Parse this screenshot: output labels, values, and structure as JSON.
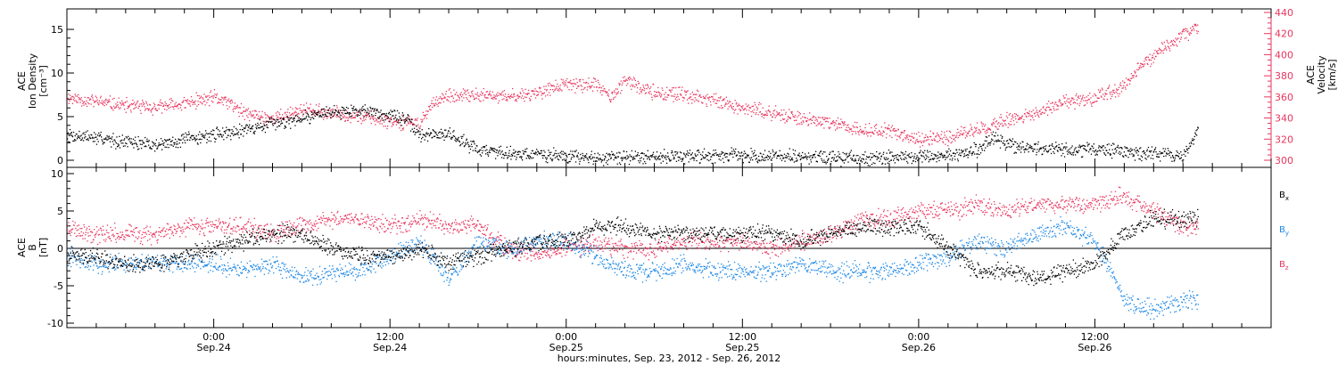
{
  "colors": {
    "black": "#000000",
    "red": "#e8365e",
    "blue": "#1e88e5",
    "frame": "#000000"
  },
  "xaxis": {
    "label": "hours:minutes, Sep. 23, 2012 - Sep. 26, 2012",
    "range_hours": [
      -10,
      72
    ],
    "ticks": [
      {
        "h": 0,
        "time": "0:00",
        "date": "Sep.24"
      },
      {
        "h": 12,
        "time": "12:00",
        "date": "Sep.24"
      },
      {
        "h": 24,
        "time": "0:00",
        "date": "Sep.25"
      },
      {
        "h": 36,
        "time": "12:00",
        "date": "Sep.25"
      },
      {
        "h": 48,
        "time": "0:00",
        "date": "Sep.26"
      },
      {
        "h": 60,
        "time": "12:00",
        "date": "Sep.26"
      }
    ]
  },
  "panel_top": {
    "left_label_lines": [
      "ACE",
      "Ion Density",
      "[cm⁻³]"
    ],
    "right_label_lines": [
      "ACE",
      "Velocity",
      "[km/s]"
    ],
    "left_ticks": [
      "0",
      "5",
      "10",
      "15"
    ],
    "right_ticks": [
      "300",
      "320",
      "340",
      "360",
      "380",
      "400",
      "420",
      "440"
    ]
  },
  "panel_bottom": {
    "left_label_lines": [
      "ACE",
      "B",
      "[nT]"
    ],
    "left_ticks": [
      "-10",
      "-5",
      "0",
      "5",
      "10"
    ],
    "legend": [
      {
        "label": "B",
        "sub": "x",
        "color_key": "black"
      },
      {
        "label": "B",
        "sub": "y",
        "color_key": "blue"
      },
      {
        "label": "B",
        "sub": "z",
        "color_key": "red"
      }
    ]
  },
  "chart_data": [
    {
      "type": "scatter",
      "title": "",
      "x_unit": "hours from 2012-09-24 00:00 UT",
      "xlim": [
        -10,
        72
      ],
      "ylabel": "ACE Ion Density [cm⁻³]",
      "ylim": [
        -1,
        17
      ],
      "y2label": "ACE Velocity [km/s]",
      "y2lim": [
        295,
        440
      ],
      "grid": false,
      "series": [
        {
          "name": "Ion Density",
          "color": "#000000",
          "axis": "left",
          "x": [
            -10,
            -7,
            -4,
            -2,
            0,
            2,
            4,
            6,
            8,
            10,
            12,
            13,
            14,
            16,
            18,
            20,
            22,
            24,
            26,
            28,
            30,
            32,
            34,
            36,
            38,
            40,
            42,
            44,
            46,
            48,
            50,
            52,
            53,
            54,
            56,
            58,
            60,
            62,
            64,
            66,
            67
          ],
          "y": [
            3.0,
            2.4,
            1.8,
            2.4,
            3.0,
            3.6,
            4.2,
            5.0,
            5.6,
            5.8,
            5.2,
            4.8,
            2.9,
            3.1,
            1.3,
            0.9,
            0.7,
            0.5,
            0.3,
            0.4,
            0.5,
            0.5,
            0.6,
            0.6,
            0.5,
            0.4,
            0.3,
            0.3,
            0.3,
            0.5,
            0.6,
            1.2,
            2.5,
            1.8,
            1.4,
            1.2,
            1.4,
            1.0,
            0.8,
            0.6,
            3.6
          ]
        },
        {
          "name": "Velocity",
          "color": "#e8365e",
          "axis": "right",
          "x": [
            -10,
            -8,
            -6,
            -4,
            -2,
            0,
            1,
            2,
            4,
            6,
            8,
            10,
            12,
            14,
            15,
            16,
            18,
            20,
            22,
            24,
            26,
            27,
            28,
            30,
            32,
            34,
            36,
            38,
            40,
            42,
            44,
            46,
            48,
            50,
            52,
            54,
            56,
            58,
            60,
            62,
            63,
            64,
            66,
            67
          ],
          "y": [
            360,
            356,
            352,
            350,
            354,
            360,
            355,
            345,
            340,
            348,
            345,
            342,
            338,
            335,
            357,
            360,
            362,
            360,
            365,
            372,
            372,
            360,
            375,
            365,
            362,
            358,
            350,
            345,
            340,
            335,
            330,
            328,
            320,
            322,
            330,
            338,
            345,
            355,
            360,
            370,
            390,
            400,
            420,
            425
          ]
        }
      ]
    },
    {
      "type": "scatter",
      "title": "",
      "x_unit": "hours from 2012-09-24 00:00 UT",
      "xlim": [
        -10,
        72
      ],
      "ylabel": "ACE B [nT]",
      "ylim": [
        -11,
        11
      ],
      "grid": false,
      "zero_line": true,
      "series": [
        {
          "name": "Bx",
          "color": "#000000",
          "x": [
            -10,
            -8,
            -6,
            -4,
            -2,
            0,
            2,
            4,
            6,
            8,
            10,
            12,
            14,
            16,
            18,
            20,
            22,
            24,
            26,
            28,
            30,
            32,
            34,
            36,
            38,
            40,
            42,
            44,
            46,
            48,
            50,
            52,
            54,
            56,
            58,
            60,
            62,
            64,
            66,
            67
          ],
          "y": [
            -1,
            -1,
            -2,
            -2,
            -1,
            0,
            1,
            2,
            2,
            0,
            -1,
            -1,
            0,
            -2,
            -1,
            0,
            1,
            1,
            3,
            3,
            2,
            2,
            2,
            2,
            2,
            1,
            2,
            3,
            3,
            3,
            0,
            -3,
            -3,
            -4,
            -3,
            -2,
            2,
            4,
            4,
            4
          ]
        },
        {
          "name": "By",
          "color": "#1e88e5",
          "x": [
            -10,
            -8,
            -6,
            -4,
            -2,
            0,
            2,
            4,
            6,
            8,
            10,
            12,
            14,
            16,
            18,
            20,
            22,
            24,
            26,
            28,
            30,
            32,
            34,
            36,
            38,
            40,
            42,
            44,
            46,
            48,
            50,
            52,
            54,
            56,
            58,
            60,
            62,
            64,
            66,
            67
          ],
          "y": [
            -1,
            -2,
            -2,
            -2,
            -2,
            -2,
            -3,
            -2,
            -4,
            -3,
            -3,
            -1,
            1,
            -4,
            1,
            0,
            1,
            1,
            -1,
            -3,
            -3,
            -2,
            -3,
            -3,
            -3,
            -2,
            -3,
            -3,
            -3,
            -2,
            -1,
            1,
            0,
            2,
            3,
            1,
            -7,
            -8,
            -7,
            -7
          ]
        },
        {
          "name": "Bz",
          "color": "#e8365e",
          "x": [
            -10,
            -8,
            -6,
            -4,
            -2,
            0,
            2,
            4,
            6,
            8,
            10,
            12,
            14,
            16,
            18,
            20,
            22,
            24,
            26,
            28,
            30,
            32,
            34,
            36,
            38,
            40,
            42,
            44,
            46,
            48,
            50,
            52,
            54,
            56,
            58,
            60,
            62,
            64,
            66,
            67
          ],
          "y": [
            3,
            2,
            2,
            2,
            3,
            3,
            3,
            2,
            3,
            4,
            4,
            3,
            4,
            3,
            3,
            0,
            -1,
            0,
            1,
            0,
            0,
            1,
            1,
            1,
            0,
            1,
            2,
            4,
            4,
            5,
            5,
            6,
            5,
            6,
            6,
            6,
            7,
            5,
            3,
            3
          ]
        }
      ]
    }
  ]
}
